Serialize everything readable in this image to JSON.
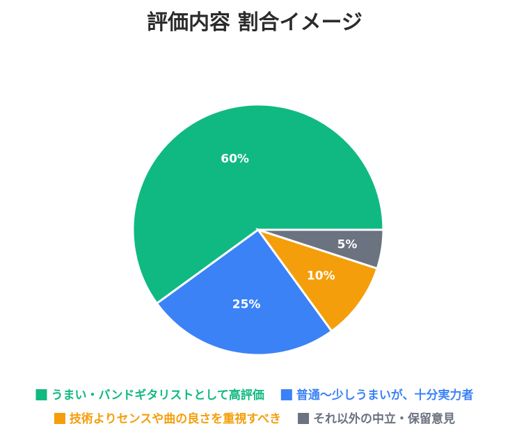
{
  "chart_data": {
    "type": "pie",
    "title": "評価内容 割合イメージ",
    "slices": [
      {
        "label": "うまい・バンドギタリストとして高評価",
        "value": 60,
        "display": "60%",
        "color": "#10b981"
      },
      {
        "label": "普通〜少しうまいが、十分実力者",
        "value": 25,
        "display": "25%",
        "color": "#3b82f6"
      },
      {
        "label": "技術よりセンスや曲の良さを重視すべき",
        "value": 10,
        "display": "10%",
        "color": "#f59e0b"
      },
      {
        "label": "それ以外の中立・保留意見",
        "value": 5,
        "display": "5%",
        "color": "#6b7280"
      }
    ],
    "legend_position": "bottom"
  }
}
